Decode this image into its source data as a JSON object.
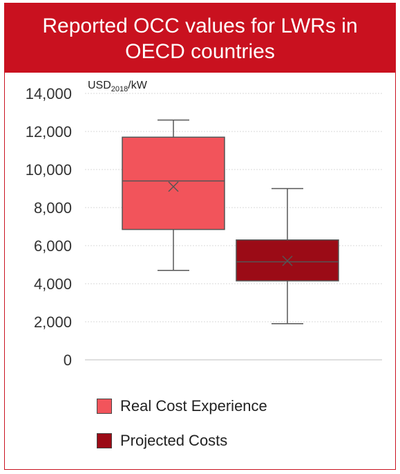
{
  "header": {
    "title_line1": "Reported OCC values for LWRs in",
    "title_line2": "OECD countries"
  },
  "colors": {
    "header_bg": "#c9111f",
    "real": "#f2545b",
    "projected": "#9b0b16"
  },
  "chart_data": {
    "type": "box",
    "title": "Reported OCC values for LWRs in OECD countries",
    "ylabel_prefix": "USD",
    "ylabel_sub": "2018",
    "ylabel_suffix": "/kW",
    "ylim": [
      0,
      14000
    ],
    "yticks": [
      0,
      2000,
      4000,
      6000,
      8000,
      10000,
      12000,
      14000
    ],
    "ytick_labels": [
      "0",
      "2,000",
      "4,000",
      "6,000",
      "8,000",
      "10,000",
      "12,000",
      "14,000"
    ],
    "grid": true,
    "legend_position": "bottom",
    "series": [
      {
        "name": "Real Cost Experience",
        "min": 4700,
        "q1": 6850,
        "median": 9400,
        "mean": 9100,
        "q3": 11700,
        "max": 12600
      },
      {
        "name": "Projected Costs",
        "min": 1900,
        "q1": 4150,
        "median": 5150,
        "mean": 5200,
        "q3": 6300,
        "max": 9000
      }
    ]
  }
}
